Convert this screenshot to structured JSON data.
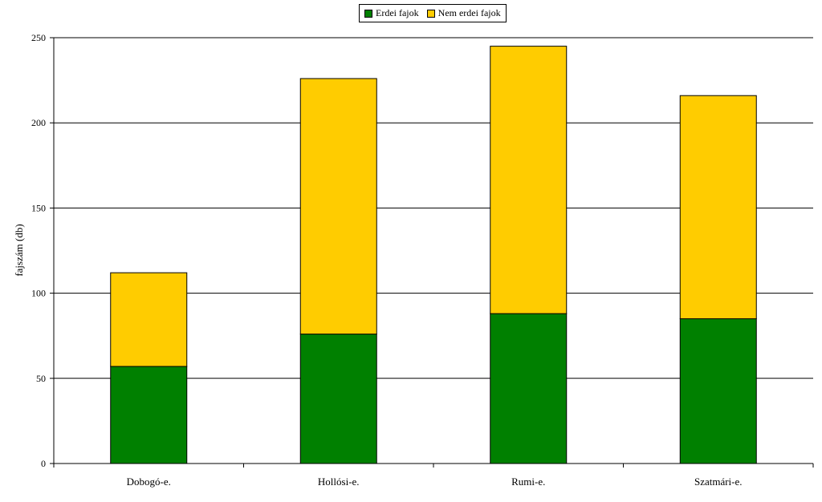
{
  "chart_data": {
    "type": "bar",
    "stacked": true,
    "categories": [
      "Dobogó-e.",
      "Hollósi-e.",
      "Rumi-e.",
      "Szatmári-e."
    ],
    "series": [
      {
        "name": "Erdei fajok",
        "color": "#008000",
        "values": [
          57,
          76,
          88,
          85
        ]
      },
      {
        "name": "Nem erdei fajok",
        "color": "#ffcc00",
        "values": [
          55,
          150,
          157,
          131
        ]
      }
    ],
    "ylabel": "fajszám (db)",
    "xlabel": "",
    "ylim": [
      0,
      250
    ],
    "yticks": [
      0,
      50,
      100,
      150,
      200,
      250
    ],
    "grid": true,
    "legend_position": "top-center"
  }
}
